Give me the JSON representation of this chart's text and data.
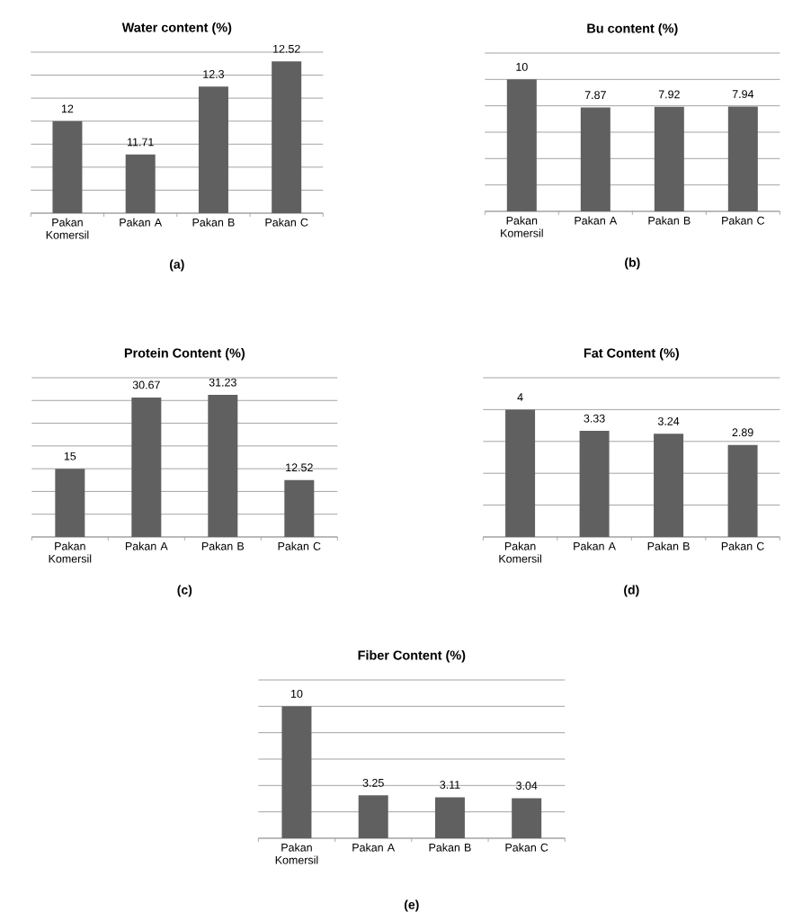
{
  "chart_data": [
    {
      "type": "bar",
      "title": "Water content (%)",
      "categories": [
        "Pakan Komersil",
        "Pakan A",
        "Pakan B",
        "Pakan C"
      ],
      "values": [
        12,
        11.71,
        12.3,
        12.52
      ],
      "color": "#606060",
      "ylim": [
        11.2,
        12.6
      ],
      "yticks": [
        {
          "value": 11.2,
          "label": null
        },
        {
          "value": 11.4,
          "label": null
        },
        {
          "value": 11.6,
          "label": null
        },
        {
          "value": 11.8,
          "label": null
        },
        {
          "value": 12,
          "label": null
        },
        {
          "value": 12.2,
          "label": null
        },
        {
          "value": 12.4,
          "label": null
        },
        {
          "value": 12.6,
          "label": null
        }
      ],
      "grid": "y",
      "tick_labels": "x",
      "data_labels": true,
      "annotations": [
        "(a)"
      ]
    },
    {
      "type": "bar",
      "title": "Bu content (%)",
      "categories": [
        "Pakan Komersil",
        "Pakan A",
        "Pakan B",
        "Pakan C"
      ],
      "values": [
        10,
        7.87,
        7.92,
        7.94
      ],
      "color": "#606060",
      "ylim": [
        0,
        12
      ],
      "yticks": [
        {
          "value": 0,
          "label": null
        },
        {
          "value": 2,
          "label": null
        },
        {
          "value": 4,
          "label": null
        },
        {
          "value": 6,
          "label": null
        },
        {
          "value": 8,
          "label": null
        },
        {
          "value": 10,
          "label": null
        },
        {
          "value": 12,
          "label": null
        }
      ],
      "grid": "y",
      "tick_labels": "x",
      "data_labels": true,
      "annotations": [
        "(b)"
      ]
    },
    {
      "type": "bar",
      "title": "Protein Content (%)",
      "categories": [
        "Pakan Komersil",
        "Pakan A",
        "Pakan B",
        "Pakan C"
      ],
      "values": [
        15,
        30.67,
        31.23,
        12.52
      ],
      "color": "#606060",
      "ylim": [
        0,
        35
      ],
      "yticks": [
        {
          "value": 0,
          "label": null
        },
        {
          "value": 5,
          "label": null
        },
        {
          "value": 10,
          "label": null
        },
        {
          "value": 15,
          "label": null
        },
        {
          "value": 20,
          "label": null
        },
        {
          "value": 25,
          "label": null
        },
        {
          "value": 30,
          "label": null
        },
        {
          "value": 35,
          "label": null
        }
      ],
      "grid": "y",
      "tick_labels": "x",
      "data_labels": true,
      "annotations": [
        "(c)"
      ]
    },
    {
      "type": "bar",
      "title": "Fat Content (%)",
      "categories": [
        "Pakan Komersil",
        "Pakan A",
        "Pakan B",
        "Pakan C"
      ],
      "values": [
        4,
        3.33,
        3.24,
        2.89
      ],
      "color": "#606060",
      "ylim": [
        0,
        5
      ],
      "yticks": [
        {
          "value": 0,
          "label": null
        },
        {
          "value": 1,
          "label": null
        },
        {
          "value": 2,
          "label": null
        },
        {
          "value": 3,
          "label": null
        },
        {
          "value": 4,
          "label": null
        },
        {
          "value": 5,
          "label": null
        }
      ],
      "grid": "y",
      "tick_labels": "x",
      "data_labels": true,
      "annotations": [
        "(d)"
      ]
    },
    {
      "type": "bar",
      "title": "Fiber Content (%)",
      "categories": [
        "Pakan Komersil",
        "Pakan A",
        "Pakan B",
        "Pakan C"
      ],
      "values": [
        10,
        3.25,
        3.11,
        3.04
      ],
      "color": "#606060",
      "ylim": [
        0,
        12
      ],
      "yticks": [
        {
          "value": 0,
          "label": null
        },
        {
          "value": 2,
          "label": null
        },
        {
          "value": 4,
          "label": null
        },
        {
          "value": 6,
          "label": null
        },
        {
          "value": 8,
          "label": null
        },
        {
          "value": 10,
          "label": null
        },
        {
          "value": 12,
          "label": null
        }
      ],
      "grid": "y",
      "tick_labels": "x",
      "data_labels": true,
      "annotations": [
        "(e)"
      ]
    }
  ]
}
